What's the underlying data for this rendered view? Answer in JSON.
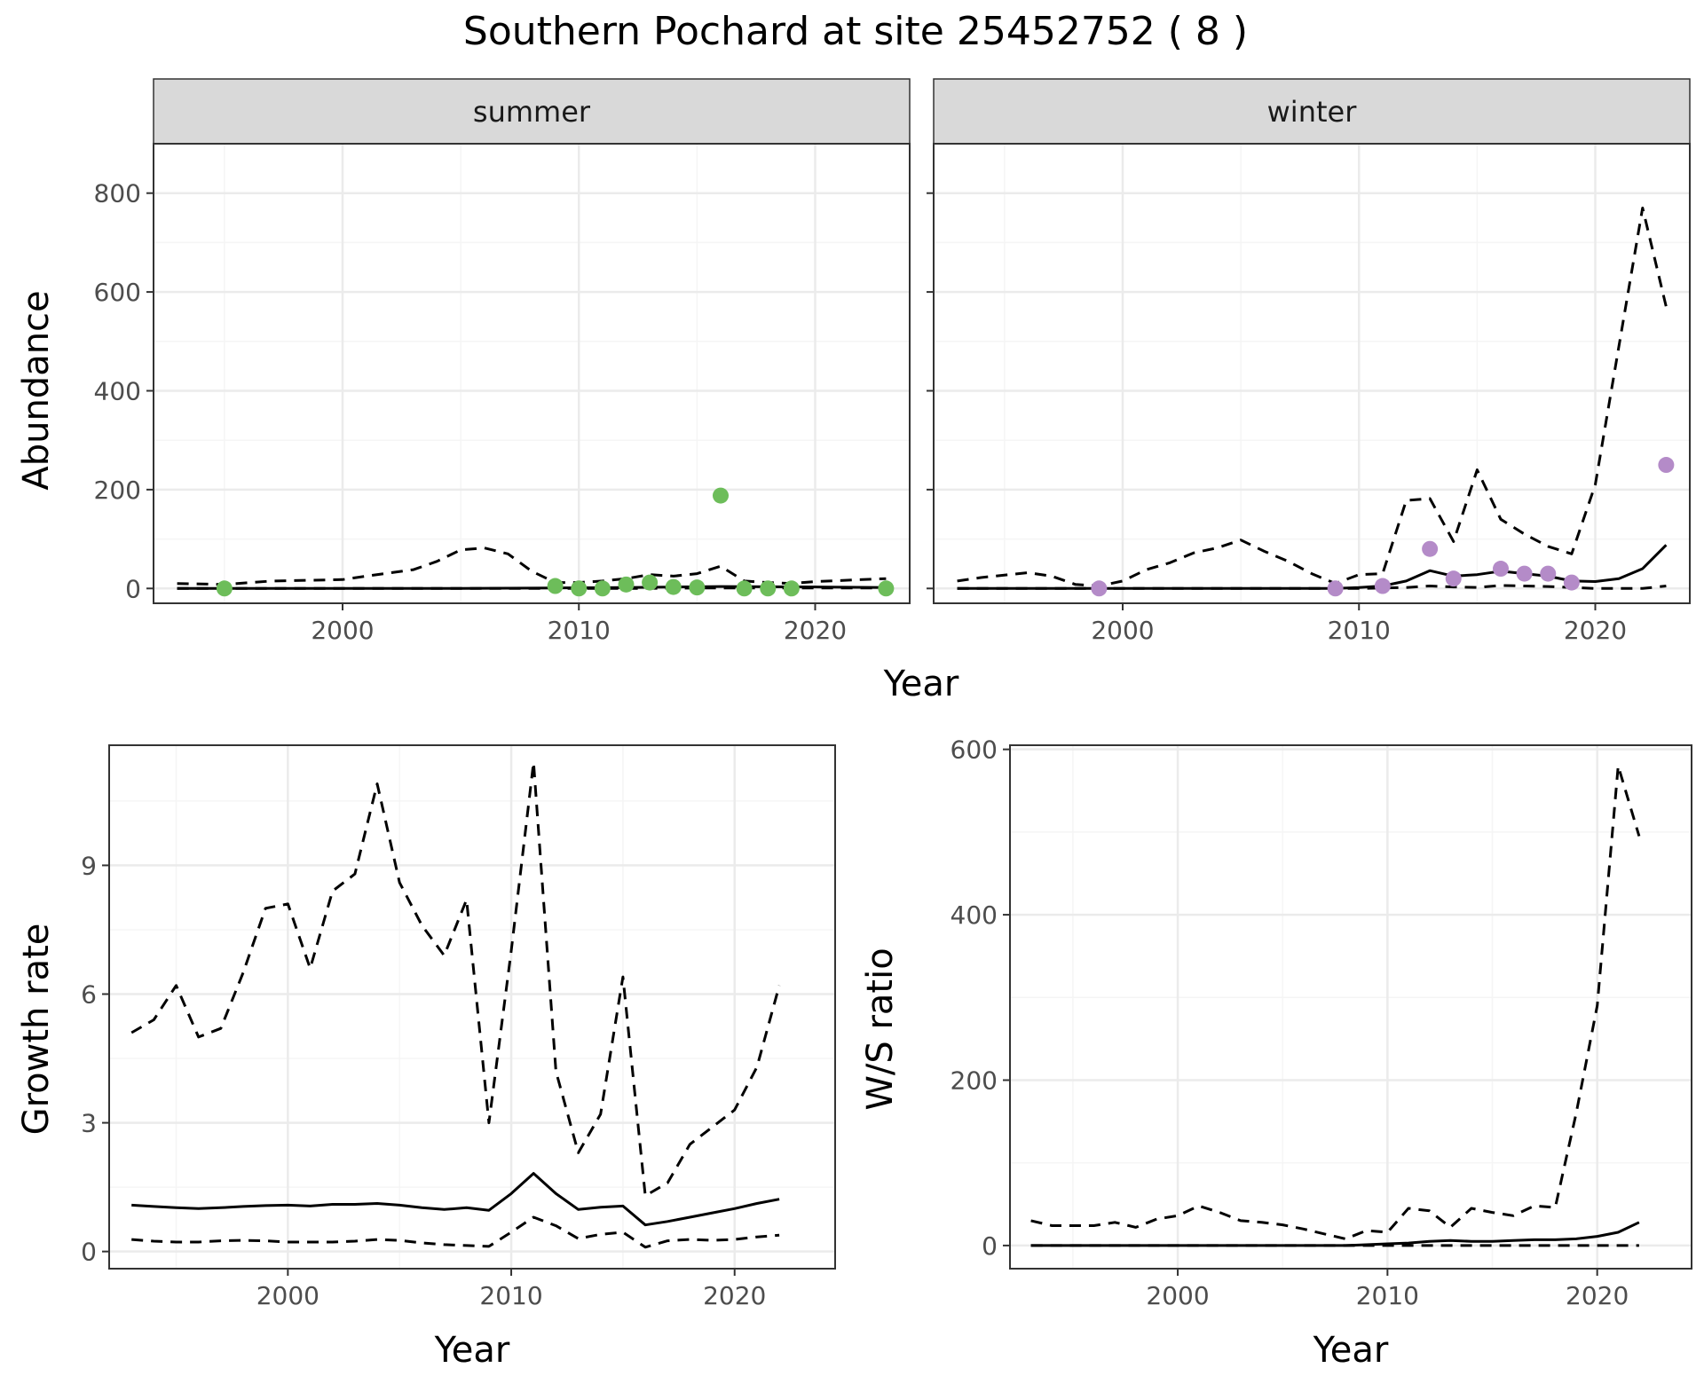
{
  "title": "Southern Pochard at site 25452752 ( 8 )",
  "colors": {
    "summer_points": "#6dbd5a",
    "winter_points": "#b48bc8",
    "line": "#000000",
    "grid_major": "#ebebeb",
    "grid_minor": "#f5f5f5",
    "strip_background": "#d9d9d9",
    "panel_border": "#333333"
  },
  "chart_data": [
    {
      "id": "abundance",
      "type": "line",
      "facets": [
        "summer",
        "winter"
      ],
      "xlabel": "Year",
      "ylabel": "Abundance",
      "xlim": [
        1992,
        2024
      ],
      "ylim": [
        -30,
        900
      ],
      "xticks": [
        "2000",
        "2010",
        "2020"
      ],
      "yticks": [
        "0",
        "200",
        "400",
        "600",
        "800"
      ],
      "grid": true,
      "panels": [
        {
          "facet": "summer",
          "estimate": {
            "x": [
              1993,
              1995,
              2000,
              2005,
              2009,
              2012,
              2016,
              2020,
              2023
            ],
            "y": [
              0,
              0,
              0,
              0,
              1,
              2,
              4,
              3,
              2
            ]
          },
          "lower": {
            "x": [
              1993,
              2000,
              2005,
              2009,
              2012,
              2016,
              2020,
              2023
            ],
            "y": [
              0,
              0,
              0,
              0,
              0,
              1,
              1,
              1
            ]
          },
          "upper": {
            "x": [
              1993,
              1995,
              1997,
              2000,
              2001,
              2003,
              2004,
              2005,
              2006,
              2007,
              2008,
              2009,
              2010,
              2011,
              2012,
              2013,
              2014,
              2015,
              2016,
              2017,
              2018,
              2019,
              2020,
              2021,
              2022,
              2023
            ],
            "y": [
              10,
              8,
              15,
              18,
              25,
              38,
              55,
              78,
              82,
              70,
              35,
              12,
              12,
              15,
              20,
              28,
              25,
              30,
              45,
              15,
              12,
              10,
              14,
              16,
              18,
              20
            ]
          },
          "points": {
            "x": [
              1995,
              2009,
              2010,
              2011,
              2012,
              2013,
              2014,
              2015,
              2016,
              2017,
              2018,
              2019,
              2023
            ],
            "y": [
              0,
              5,
              0,
              0,
              8,
              12,
              3,
              2,
              188,
              0,
              0,
              0,
              0
            ]
          }
        },
        {
          "facet": "winter",
          "estimate": {
            "x": [
              1993,
              2000,
              2005,
              2009,
              2010,
              2011,
              2012,
              2013,
              2014,
              2015,
              2016,
              2017,
              2018,
              2019,
              2020,
              2021,
              2022,
              2023
            ],
            "y": [
              0,
              0,
              0,
              0,
              2,
              5,
              15,
              36,
              25,
              28,
              35,
              30,
              25,
              15,
              14,
              20,
              40,
              88
            ]
          },
          "lower": {
            "x": [
              1993,
              2000,
              2005,
              2010,
              2012,
              2013,
              2014,
              2015,
              2016,
              2017,
              2018,
              2019,
              2020,
              2021,
              2022,
              2023
            ],
            "y": [
              0,
              0,
              0,
              0,
              2,
              5,
              3,
              2,
              6,
              5,
              4,
              2,
              0,
              0,
              0,
              5
            ]
          },
          "upper": {
            "x": [
              1993,
              1994,
              1996,
              1997,
              1998,
              1999,
              2000,
              2001,
              2002,
              2003,
              2004,
              2005,
              2006,
              2007,
              2008,
              2009,
              2010,
              2011,
              2012,
              2013,
              2014,
              2015,
              2016,
              2017,
              2018,
              2019,
              2020,
              2021,
              2022,
              2023
            ],
            "y": [
              15,
              22,
              32,
              25,
              8,
              5,
              15,
              38,
              52,
              72,
              82,
              98,
              75,
              55,
              30,
              10,
              28,
              30,
              178,
              182,
              95,
              240,
              140,
              110,
              85,
              70,
              210,
              490,
              770,
              570
            ]
          },
          "points": {
            "x": [
              1999,
              2009,
              2011,
              2013,
              2014,
              2016,
              2017,
              2018,
              2019,
              2023
            ],
            "y": [
              0,
              0,
              5,
              80,
              20,
              40,
              30,
              30,
              12,
              250
            ]
          }
        }
      ]
    },
    {
      "id": "growth",
      "type": "line",
      "xlabel": "Year",
      "ylabel": "Growth rate",
      "xlim": [
        1992,
        2024.5
      ],
      "ylim": [
        -0.4,
        11.8
      ],
      "xticks": [
        "2000",
        "2010",
        "2020"
      ],
      "yticks": [
        "0",
        "3",
        "6",
        "9"
      ],
      "grid": true,
      "estimate": {
        "x": [
          1993,
          1994,
          1995,
          1996,
          1997,
          1998,
          1999,
          2000,
          2001,
          2002,
          2003,
          2004,
          2005,
          2006,
          2007,
          2008,
          2009,
          2010,
          2011,
          2012,
          2013,
          2014,
          2015,
          2016,
          2017,
          2018,
          2019,
          2020,
          2021,
          2022
        ],
        "y": [
          1.08,
          1.05,
          1.02,
          1.0,
          1.02,
          1.05,
          1.07,
          1.08,
          1.06,
          1.1,
          1.1,
          1.12,
          1.08,
          1.02,
          0.98,
          1.02,
          0.96,
          1.35,
          1.82,
          1.35,
          0.98,
          1.03,
          1.06,
          0.62,
          0.7,
          0.8,
          0.9,
          1.0,
          1.12,
          1.22
        ]
      },
      "lower": {
        "x": [
          1993,
          1994,
          1995,
          1996,
          1997,
          1998,
          1999,
          2000,
          2001,
          2002,
          2003,
          2004,
          2005,
          2006,
          2007,
          2008,
          2009,
          2010,
          2011,
          2012,
          2013,
          2014,
          2015,
          2016,
          2017,
          2018,
          2019,
          2020,
          2021,
          2022
        ],
        "y": [
          0.28,
          0.24,
          0.22,
          0.22,
          0.25,
          0.26,
          0.25,
          0.22,
          0.22,
          0.22,
          0.24,
          0.28,
          0.26,
          0.2,
          0.16,
          0.14,
          0.12,
          0.45,
          0.8,
          0.6,
          0.3,
          0.4,
          0.45,
          0.1,
          0.25,
          0.28,
          0.26,
          0.28,
          0.34,
          0.38
        ]
      },
      "upper": {
        "x": [
          1993,
          1994,
          1995,
          1996,
          1997,
          1998,
          1999,
          2000,
          2001,
          2002,
          2003,
          2004,
          2005,
          2006,
          2007,
          2008,
          2009,
          2010,
          2011,
          2012,
          2013,
          2014,
          2015,
          2016,
          2017,
          2018,
          2019,
          2020,
          2021,
          2022
        ],
        "y": [
          5.1,
          5.4,
          6.2,
          5.0,
          5.2,
          6.5,
          8.0,
          8.1,
          6.6,
          8.4,
          8.8,
          10.9,
          8.6,
          7.6,
          6.9,
          8.2,
          3.0,
          7.0,
          11.4,
          4.2,
          2.3,
          3.2,
          6.4,
          1.3,
          1.6,
          2.5,
          2.9,
          3.3,
          4.3,
          6.2
        ]
      }
    },
    {
      "id": "ratio",
      "type": "line",
      "xlabel": "Year",
      "ylabel": "W/S ratio",
      "xlim": [
        1992,
        2024.5
      ],
      "ylim": [
        -28,
        605
      ],
      "xticks": [
        "2000",
        "2010",
        "2020"
      ],
      "yticks": [
        "0",
        "200",
        "400",
        "600"
      ],
      "grid": true,
      "estimate": {
        "x": [
          1993,
          2000,
          2005,
          2008,
          2010,
          2011,
          2012,
          2013,
          2014,
          2015,
          2016,
          2017,
          2018,
          2019,
          2020,
          2021,
          2022
        ],
        "y": [
          0,
          0,
          0,
          0,
          2,
          3,
          5,
          6,
          5,
          5,
          6,
          7,
          7,
          8,
          11,
          16,
          28
        ]
      },
      "lower": {
        "x": [
          1993,
          2000,
          2005,
          2010,
          2015,
          2020,
          2022
        ],
        "y": [
          0,
          0,
          0,
          0,
          0,
          0,
          0
        ]
      },
      "upper": {
        "x": [
          1993,
          1994,
          1996,
          1997,
          1998,
          1999,
          2000,
          2001,
          2002,
          2003,
          2004,
          2005,
          2006,
          2007,
          2008,
          2009,
          2010,
          2011,
          2012,
          2013,
          2014,
          2015,
          2016,
          2017,
          2018,
          2019,
          2020,
          2021,
          2022
        ],
        "y": [
          30,
          24,
          24,
          28,
          22,
          32,
          36,
          48,
          40,
          30,
          28,
          25,
          20,
          14,
          8,
          18,
          16,
          45,
          42,
          22,
          45,
          40,
          36,
          48,
          46,
          160,
          290,
          580,
          495
        ]
      }
    }
  ]
}
